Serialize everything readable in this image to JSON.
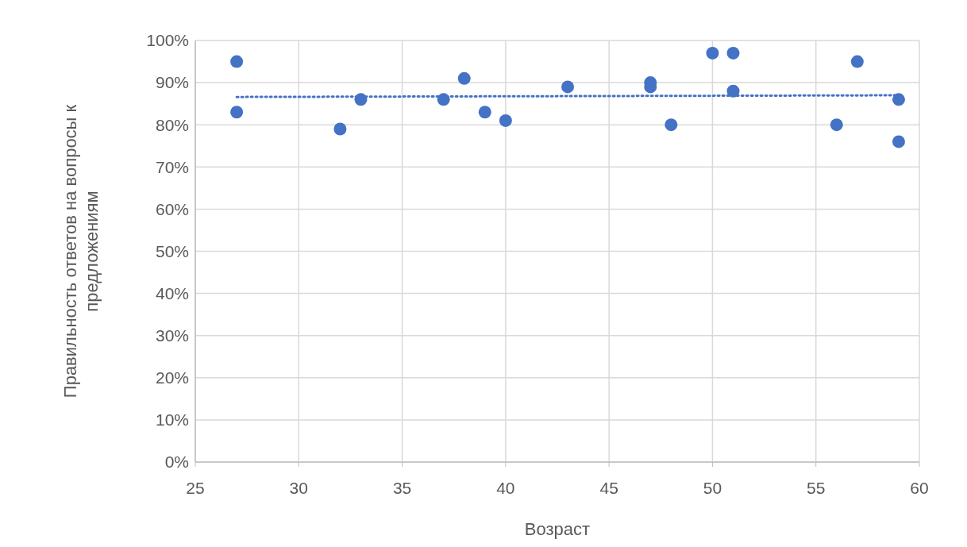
{
  "chart_data": {
    "type": "scatter",
    "xlabel": "Возраст",
    "ylabel": "Правильность ответов на вопросы к предложениям",
    "xlim": [
      25,
      60
    ],
    "xticks": [
      25,
      30,
      35,
      40,
      45,
      50,
      55,
      60
    ],
    "ylim": [
      0,
      100
    ],
    "yticks": [
      {
        "value": 0,
        "label": "0%"
      },
      {
        "value": 10,
        "label": "10%"
      },
      {
        "value": 20,
        "label": "20%"
      },
      {
        "value": 30,
        "label": "30%"
      },
      {
        "value": 40,
        "label": "40%"
      },
      {
        "value": 50,
        "label": "50%"
      },
      {
        "value": 60,
        "label": "60%"
      },
      {
        "value": 70,
        "label": "70%"
      },
      {
        "value": 80,
        "label": "80%"
      },
      {
        "value": 90,
        "label": "90%"
      },
      {
        "value": 100,
        "label": "100%"
      }
    ],
    "grid": true,
    "marker": "circle",
    "series": [
      {
        "color": "#4472c4",
        "x": [
          27,
          27,
          32,
          33,
          37,
          38,
          39,
          40,
          43,
          47,
          47,
          48,
          50,
          51,
          51,
          56,
          57,
          59,
          59
        ],
        "values": [
          95,
          83,
          79,
          86,
          86,
          91,
          83,
          81,
          89,
          90,
          89,
          80,
          97,
          97,
          88,
          80,
          95,
          86,
          76
        ]
      },
      {
        "type": "line",
        "color": "#4472c4",
        "line_style": "dotted",
        "marker": "none",
        "x": [
          27,
          59
        ],
        "values": [
          86.6,
          87.0
        ]
      }
    ]
  }
}
